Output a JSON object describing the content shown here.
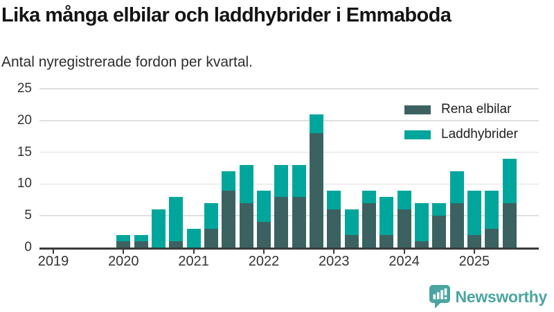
{
  "title": "Lika många elbilar och laddhybrider i Emmaboda",
  "subtitle": "Antal nyregistrerade fordon per kvartal.",
  "colors": {
    "electric": "#3b6261",
    "hybrid": "#00a69c",
    "grid": "#dfdfdf",
    "axis": "#3a3a3a",
    "tick_text": "#333333",
    "logo": "#4ba5a1"
  },
  "legend": [
    {
      "label": "Rena elbilar",
      "color": "#3b6261"
    },
    {
      "label": "Laddhybrider",
      "color": "#00a69c"
    }
  ],
  "footer": {
    "brand": "Newsworthy",
    "logo_icon": "bar-chart-speech-bubble-icon"
  },
  "chart_data": {
    "type": "bar",
    "stacked": true,
    "title": "Lika många elbilar och laddhybrider i Emmaboda",
    "subtitle": "Antal nyregistrerade fordon per kvartal.",
    "x_unit": "quarter",
    "categories": [
      "2019 Q1",
      "2019 Q2",
      "2019 Q3",
      "2019 Q4",
      "2020 Q1",
      "2020 Q2",
      "2020 Q3",
      "2020 Q4",
      "2021 Q1",
      "2021 Q2",
      "2021 Q3",
      "2021 Q4",
      "2022 Q1",
      "2022 Q2",
      "2022 Q3",
      "2022 Q4",
      "2023 Q1",
      "2023 Q2",
      "2023 Q3",
      "2023 Q4",
      "2024 Q1",
      "2024 Q2",
      "2024 Q3",
      "2024 Q4",
      "2025 Q1",
      "2025 Q2",
      "2025 Q3"
    ],
    "series": [
      {
        "name": "Rena elbilar",
        "color": "#3b6261",
        "values": [
          0,
          0,
          0,
          0,
          1,
          1,
          0,
          1,
          0,
          3,
          9,
          7,
          4,
          8,
          8,
          18,
          6,
          2,
          7,
          2,
          6,
          1,
          5,
          7,
          2,
          3,
          7
        ]
      },
      {
        "name": "Laddhybrider",
        "color": "#00a69c",
        "values": [
          0,
          0,
          0,
          0,
          1,
          1,
          6,
          7,
          3,
          4,
          3,
          6,
          5,
          5,
          5,
          3,
          3,
          4,
          2,
          6,
          3,
          6,
          2,
          5,
          7,
          6,
          7
        ]
      }
    ],
    "totals": [
      0,
      0,
      0,
      0,
      2,
      2,
      6,
      8,
      3,
      7,
      12,
      13,
      9,
      13,
      13,
      21,
      9,
      6,
      9,
      8,
      9,
      7,
      7,
      12,
      9,
      9,
      14
    ],
    "ylim": [
      0,
      25
    ],
    "y_ticks": [
      0,
      5,
      10,
      15,
      20,
      25
    ],
    "x_tick_labels": [
      "2019",
      "2020",
      "2021",
      "2022",
      "2023",
      "2024",
      "2025"
    ],
    "grid": "horizontal",
    "legend_position": "top-right"
  }
}
